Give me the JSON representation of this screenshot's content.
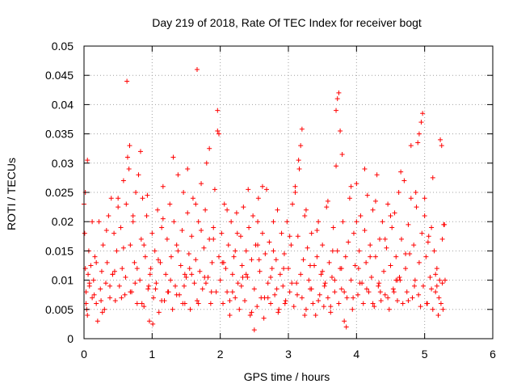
{
  "colors": {
    "points": "#ff0000",
    "grid": "#a0a0a0",
    "axes": "#000000",
    "background": "#ffffff"
  },
  "chart_data": {
    "type": "scatter",
    "title": "Day 219 of 2018, Rate Of TEC Index for receiver bogt",
    "xlabel": "GPS time / hours",
    "ylabel": "ROTI / TECUs",
    "xlim": [
      0,
      6
    ],
    "ylim": [
      0,
      0.05
    ],
    "xticks": [
      0,
      1,
      2,
      3,
      4,
      5,
      6
    ],
    "xtick_labels": [
      "0",
      "1",
      "2",
      "3",
      "4",
      "5",
      "6"
    ],
    "yticks": [
      0,
      0.005,
      0.01,
      0.015,
      0.02,
      0.025,
      0.03,
      0.035,
      0.04,
      0.045,
      0.05
    ],
    "ytick_labels": [
      "0",
      "0.005",
      "0.01",
      "0.015",
      "0.02",
      "0.025",
      "0.03",
      "0.035",
      "0.04",
      "0.045",
      "0.05"
    ],
    "grid": true,
    "marker": "+",
    "series": [
      {
        "name": "ROTI",
        "x": [
          0.0,
          0.01,
          0.02,
          0.03,
          0.04,
          0.05,
          0.06,
          0.07,
          0.08,
          0.1,
          0.12,
          0.14,
          0.16,
          0.18,
          0.2,
          0.22,
          0.24,
          0.26,
          0.28,
          0.3,
          0.32,
          0.34,
          0.36,
          0.38,
          0.4,
          0.42,
          0.44,
          0.46,
          0.48,
          0.5,
          0.52,
          0.54,
          0.56,
          0.58,
          0.6,
          0.61,
          0.62,
          0.64,
          0.66,
          0.68,
          0.7,
          0.72,
          0.74,
          0.76,
          0.78,
          0.8,
          0.82,
          0.84,
          0.86,
          0.88,
          0.9,
          0.92,
          0.94,
          0.96,
          0.98,
          1.0,
          1.02,
          1.04,
          1.06,
          1.08,
          1.1,
          1.12,
          1.14,
          1.16,
          1.18,
          1.2,
          1.22,
          1.24,
          1.26,
          1.28,
          1.3,
          1.32,
          1.34,
          1.36,
          1.38,
          1.4,
          1.42,
          1.44,
          1.46,
          1.48,
          1.5,
          1.52,
          1.54,
          1.56,
          1.58,
          1.6,
          1.62,
          1.64,
          1.66,
          1.68,
          1.7,
          1.72,
          1.74,
          1.76,
          1.78,
          1.8,
          1.82,
          1.84,
          1.86,
          1.88,
          1.9,
          1.92,
          1.94,
          1.96,
          1.98,
          2.0,
          2.02,
          2.04,
          2.06,
          2.08,
          2.1,
          2.12,
          2.14,
          2.16,
          2.18,
          2.2,
          2.22,
          2.24,
          2.26,
          2.28,
          2.3,
          2.32,
          2.34,
          2.36,
          2.38,
          2.4,
          2.42,
          2.44,
          2.46,
          2.48,
          2.5,
          2.52,
          2.54,
          2.56,
          2.58,
          2.6,
          2.62,
          2.64,
          2.66,
          2.68,
          2.7,
          2.72,
          2.74,
          2.76,
          2.78,
          2.8,
          2.82,
          2.84,
          2.86,
          2.88,
          2.9,
          2.92,
          2.94,
          2.96,
          2.98,
          3.0,
          3.02,
          3.04,
          3.06,
          3.08,
          3.1,
          3.12,
          3.14,
          3.16,
          3.18,
          3.2,
          3.22,
          3.24,
          3.26,
          3.28,
          3.3,
          3.32,
          3.34,
          3.36,
          3.38,
          3.4,
          3.42,
          3.44,
          3.46,
          3.48,
          3.5,
          3.52,
          3.54,
          3.56,
          3.58,
          3.6,
          3.62,
          3.64,
          3.66,
          3.68,
          3.7,
          3.72,
          3.74,
          3.76,
          3.78,
          3.8,
          3.82,
          3.84,
          3.86,
          3.88,
          3.9,
          3.92,
          3.94,
          3.96,
          3.98,
          4.0,
          4.02,
          4.04,
          4.06,
          4.08,
          4.1,
          4.12,
          4.14,
          4.16,
          4.18,
          4.2,
          4.22,
          4.24,
          4.26,
          4.28,
          4.3,
          4.32,
          4.34,
          4.36,
          4.38,
          4.4,
          4.42,
          4.44,
          4.46,
          4.48,
          4.5,
          4.52,
          4.54,
          4.56,
          4.58,
          4.6,
          4.62,
          4.64,
          4.66,
          4.68,
          4.7,
          4.72,
          4.74,
          4.76,
          4.78,
          4.8,
          4.82,
          4.84,
          4.86,
          4.88,
          4.9,
          4.92,
          4.94,
          4.96,
          4.98,
          5.0,
          5.02,
          5.04,
          5.06,
          5.08,
          5.1,
          5.12,
          5.14,
          5.16,
          5.18,
          5.2,
          5.22,
          5.24,
          5.26,
          5.28,
          0.02,
          0.05,
          0.08,
          0.12,
          0.18,
          0.25,
          0.33,
          0.42,
          0.5,
          0.58,
          0.63,
          0.67,
          0.72,
          0.78,
          0.83,
          0.88,
          0.93,
          1.01,
          1.09,
          1.16,
          1.23,
          1.31,
          1.38,
          1.45,
          1.52,
          1.58,
          1.64,
          1.66,
          1.72,
          1.79,
          1.84,
          1.9,
          1.96,
          1.98,
          2.03,
          2.1,
          2.18,
          2.25,
          2.33,
          2.41,
          2.5,
          2.55,
          2.62,
          2.7,
          2.78,
          2.85,
          2.93,
          3.02,
          3.1,
          3.15,
          3.18,
          3.2,
          3.26,
          3.34,
          3.42,
          3.5,
          3.58,
          3.65,
          3.7,
          3.72,
          3.74,
          3.76,
          3.79,
          3.85,
          3.92,
          4.0,
          4.05,
          4.12,
          4.2,
          4.28,
          4.35,
          4.42,
          4.5,
          4.58,
          4.65,
          4.72,
          4.8,
          4.87,
          4.92,
          4.95,
          4.97,
          5.0,
          5.05,
          5.12,
          5.18,
          5.23,
          5.25,
          5.27,
          5.29,
          5.3,
          0.03,
          0.15,
          0.27,
          0.38,
          0.45,
          0.55,
          0.68,
          0.75,
          0.85,
          0.97,
          1.05,
          1.14,
          1.27,
          1.36,
          1.47,
          1.55,
          1.68,
          1.77,
          1.87,
          2.05,
          2.14,
          2.22,
          2.31,
          2.38,
          2.46,
          2.57,
          2.65,
          2.74,
          2.83,
          2.95,
          3.05,
          3.13,
          3.24,
          3.32,
          3.44,
          3.53,
          3.62,
          3.68,
          3.82,
          3.95,
          4.03,
          4.15,
          4.24,
          4.33,
          4.46,
          4.55,
          4.63,
          4.76,
          4.85,
          4.91,
          5.03,
          5.1,
          5.16,
          5.21,
          5.26,
          2.55,
          3.78,
          4.6,
          1.48,
          0.95
        ],
        "y": [
          0.023,
          0.018,
          0.012,
          0.008,
          0.005,
          0.004,
          0.011,
          0.015,
          0.009,
          0.0125,
          0.007,
          0.01,
          0.014,
          0.006,
          0.003,
          0.02,
          0.0085,
          0.0115,
          0.016,
          0.005,
          0.0095,
          0.013,
          0.021,
          0.007,
          0.024,
          0.011,
          0.018,
          0.0065,
          0.015,
          0.0225,
          0.009,
          0.019,
          0.012,
          0.027,
          0.0075,
          0.0105,
          0.023,
          0.031,
          0.029,
          0.016,
          0.008,
          0.02,
          0.013,
          0.025,
          0.006,
          0.028,
          0.01,
          0.017,
          0.024,
          0.0055,
          0.014,
          0.021,
          0.0085,
          0.003,
          0.012,
          0.018,
          0.007,
          0.015,
          0.0095,
          0.022,
          0.0045,
          0.013,
          0.019,
          0.026,
          0.0065,
          0.011,
          0.017,
          0.008,
          0.023,
          0.014,
          0.005,
          0.02,
          0.009,
          0.016,
          0.028,
          0.0075,
          0.0125,
          0.0185,
          0.025,
          0.006,
          0.0105,
          0.0215,
          0.0145,
          0.005,
          0.0175,
          0.024,
          0.0095,
          0.0135,
          0.0065,
          0.02,
          0.0115,
          0.0265,
          0.0085,
          0.0155,
          0.022,
          0.03,
          0.0105,
          0.017,
          0.006,
          0.013,
          0.019,
          0.0255,
          0.008,
          0.0355,
          0.014,
          0.01,
          0.018,
          0.006,
          0.023,
          0.012,
          0.008,
          0.016,
          0.004,
          0.02,
          0.011,
          0.014,
          0.007,
          0.0215,
          0.0095,
          0.005,
          0.0175,
          0.0125,
          0.0225,
          0.0065,
          0.015,
          0.0105,
          0.019,
          0.004,
          0.0135,
          0.021,
          0.0085,
          0.016,
          0.0055,
          0.024,
          0.0115,
          0.007,
          0.018,
          0.0035,
          0.0145,
          0.0255,
          0.0095,
          0.0165,
          0.006,
          0.012,
          0.02,
          0.0075,
          0.0135,
          0.022,
          0.005,
          0.011,
          0.018,
          0.009,
          0.0145,
          0.0065,
          0.02,
          0.012,
          0.008,
          0.016,
          0.023,
          0.0055,
          0.025,
          0.0095,
          0.0175,
          0.029,
          0.011,
          0.007,
          0.0135,
          0.021,
          0.005,
          0.0155,
          0.01,
          0.0085,
          0.018,
          0.006,
          0.0125,
          0.004,
          0.014,
          0.02,
          0.0075,
          0.011,
          0.016,
          0.0055,
          0.0095,
          0.0225,
          0.007,
          0.013,
          0.0045,
          0.0105,
          0.019,
          0.008,
          0.0295,
          0.015,
          0.006,
          0.012,
          0.0085,
          0.02,
          0.003,
          0.014,
          0.007,
          0.0165,
          0.024,
          0.01,
          0.005,
          0.018,
          0.0125,
          0.0265,
          0.0075,
          0.015,
          0.021,
          0.0095,
          0.006,
          0.0185,
          0.013,
          0.0245,
          0.008,
          0.016,
          0.0105,
          0.022,
          0.0055,
          0.014,
          0.028,
          0.009,
          0.017,
          0.0065,
          0.02,
          0.0115,
          0.0075,
          0.0155,
          0.023,
          0.005,
          0.0125,
          0.019,
          0.0085,
          0.0215,
          0.014,
          0.0065,
          0.025,
          0.01,
          0.017,
          0.006,
          0.027,
          0.012,
          0.008,
          0.0195,
          0.0145,
          0.024,
          0.007,
          0.016,
          0.01,
          0.0225,
          0.0335,
          0.013,
          0.0055,
          0.018,
          0.009,
          0.021,
          0.014,
          0.006,
          0.0175,
          0.0105,
          0.019,
          0.005,
          0.015,
          0.008,
          0.012,
          0.004,
          0.01,
          0.006,
          0.017,
          0.0195,
          0.025,
          0.0305,
          0.0095,
          0.02,
          0.013,
          0.0065,
          0.0185,
          0.011,
          0.024,
          0.0155,
          0.044,
          0.033,
          0.021,
          0.012,
          0.032,
          0.016,
          0.0245,
          0.0025,
          0.0135,
          0.0205,
          0.008,
          0.031,
          0.015,
          0.006,
          0.029,
          0.011,
          0.023,
          0.046,
          0.0185,
          0.0095,
          0.0325,
          0.017,
          0.039,
          0.035,
          0.013,
          0.022,
          0.008,
          0.018,
          0.0105,
          0.0255,
          0.0015,
          0.02,
          0.026,
          0.007,
          0.015,
          0.0045,
          0.012,
          0.0175,
          0.026,
          0.0305,
          0.033,
          0.0358,
          0.022,
          0.0085,
          0.0185,
          0.0115,
          0.0235,
          0.015,
          0.039,
          0.041,
          0.042,
          0.0355,
          0.0315,
          0.002,
          0.026,
          0.02,
          0.0095,
          0.029,
          0.014,
          0.0235,
          0.008,
          0.017,
          0.021,
          0.01,
          0.0285,
          0.0145,
          0.033,
          0.025,
          0.035,
          0.037,
          0.0385,
          0.024,
          0.0165,
          0.0275,
          0.009,
          0.034,
          0.033,
          0.005,
          0.0195,
          0.01,
          0.006,
          0.0075,
          0.0045,
          0.009,
          0.0115,
          0.007,
          0.008,
          0.0095,
          0.006,
          0.011,
          0.0085,
          0.0065,
          0.01,
          0.0075,
          0.009,
          0.012,
          0.006,
          0.0105,
          0.008,
          0.013,
          0.0065,
          0.015,
          0.009,
          0.011,
          0.0045,
          0.0135,
          0.007,
          0.0105,
          0.0085,
          0.006,
          0.0095,
          0.0075,
          0.004,
          0.0125,
          0.0065,
          0.009,
          0.0055,
          0.01,
          0.008,
          0.007,
          0.012,
          0.0085,
          0.006,
          0.0095,
          0.007,
          0.008,
          0.0105,
          0.0065,
          0.009,
          0.0075,
          0.006,
          0.0085,
          0.011,
          0.007,
          0.0095,
          0.016,
          0.012,
          0.01,
          0.011,
          0.009
        ]
      }
    ]
  }
}
